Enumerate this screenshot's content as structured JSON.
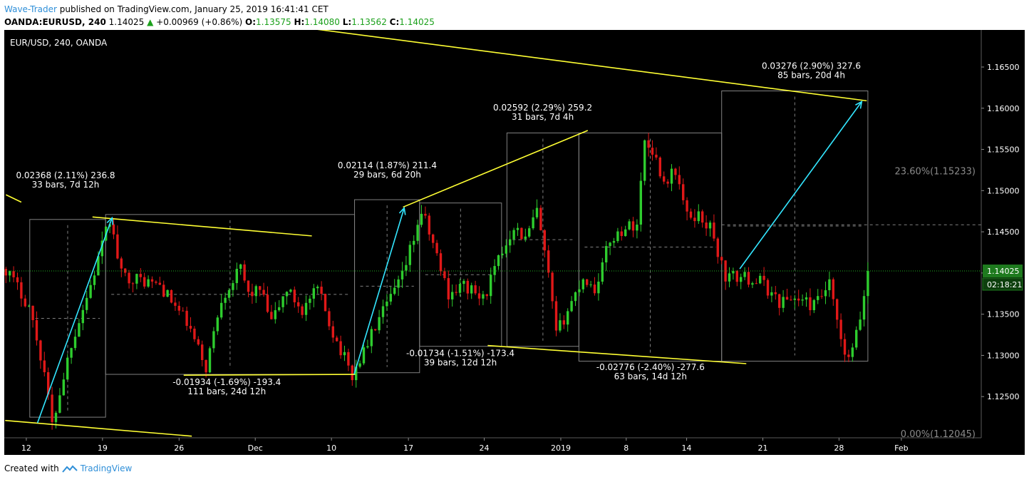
{
  "header": {
    "author": "Wave-Trader",
    "published": "published on TradingView.com, January 25, 2019 16:41:41 CET",
    "symbol": "OANDA:EURUSD, 240",
    "last": "1.14025",
    "change": "+0.00969 (+0.86%)",
    "o_label": "O:",
    "o_value": "1.13575",
    "h_label": "H:",
    "h_value": "1.14080",
    "l_label": "L:",
    "l_value": "1.13562",
    "c_label": "C:",
    "c_value": "1.14025"
  },
  "footer": {
    "created_with": "Created with",
    "brand": "TradingView"
  },
  "colors": {
    "background": "#000000",
    "up": "#2ecc2e",
    "down": "#e01818",
    "trendline": "#ffff33",
    "arrow": "#33e6ff",
    "box": "#808080",
    "price_tag": "#1e7a1e",
    "text": "#ffffff"
  },
  "chart_data": {
    "type": "candlestick",
    "title": "EUR/USD, 240, OANDA",
    "ylim": [
      1.12,
      1.1695
    ],
    "y_ticks": [
      "1.12500",
      "1.13000",
      "1.13500",
      "1.14000",
      "1.14500",
      "1.15000",
      "1.15500",
      "1.16000",
      "1.16500"
    ],
    "x_ticks": [
      "12",
      "19",
      "26",
      "Dec",
      "10",
      "17",
      "24",
      "2019",
      "8",
      "14",
      "21",
      "28",
      "Feb"
    ],
    "last_price": "1.14025",
    "countdown": "02:18:21",
    "fib_levels": [
      {
        "label": "23.60%(1.15233)",
        "value": 1.15233
      },
      {
        "label": "0.00%(1.12045)",
        "value": 1.12045
      }
    ],
    "price_path_anchors": [
      {
        "t": 0,
        "v": 1.1405
      },
      {
        "t": 6,
        "v": 1.136
      },
      {
        "t": 10,
        "v": 1.128
      },
      {
        "t": 12,
        "v": 1.1215
      },
      {
        "t": 17,
        "v": 1.1315
      },
      {
        "t": 22,
        "v": 1.1385
      },
      {
        "t": 27,
        "v": 1.1465
      },
      {
        "t": 30,
        "v": 1.1398
      },
      {
        "t": 40,
        "v": 1.1385
      },
      {
        "t": 47,
        "v": 1.134
      },
      {
        "t": 52,
        "v": 1.1285
      },
      {
        "t": 56,
        "v": 1.137
      },
      {
        "t": 61,
        "v": 1.1405
      },
      {
        "t": 63,
        "v": 1.1375
      },
      {
        "t": 66,
        "v": 1.138
      },
      {
        "t": 69,
        "v": 1.134
      },
      {
        "t": 73,
        "v": 1.138
      },
      {
        "t": 77,
        "v": 1.1355
      },
      {
        "t": 81,
        "v": 1.138
      },
      {
        "t": 85,
        "v": 1.1328
      },
      {
        "t": 90,
        "v": 1.1275
      },
      {
        "t": 96,
        "v": 1.1335
      },
      {
        "t": 103,
        "v": 1.1395
      },
      {
        "t": 108,
        "v": 1.1475
      },
      {
        "t": 111,
        "v": 1.1435
      },
      {
        "t": 115,
        "v": 1.1375
      },
      {
        "t": 119,
        "v": 1.1385
      },
      {
        "t": 124,
        "v": 1.1368
      },
      {
        "t": 128,
        "v": 1.1415
      },
      {
        "t": 132,
        "v": 1.1458
      },
      {
        "t": 135,
        "v": 1.144
      },
      {
        "t": 138,
        "v": 1.1475
      },
      {
        "t": 141,
        "v": 1.1395
      },
      {
        "t": 143,
        "v": 1.1325
      },
      {
        "t": 146,
        "v": 1.1355
      },
      {
        "t": 150,
        "v": 1.1395
      },
      {
        "t": 153,
        "v": 1.138
      },
      {
        "t": 157,
        "v": 1.144
      },
      {
        "t": 161,
        "v": 1.1455
      },
      {
        "t": 164,
        "v": 1.146
      },
      {
        "t": 166,
        "v": 1.156
      },
      {
        "t": 168,
        "v": 1.155
      },
      {
        "t": 171,
        "v": 1.151
      },
      {
        "t": 174,
        "v": 1.1525
      },
      {
        "t": 177,
        "v": 1.1468
      },
      {
        "t": 180,
        "v": 1.147
      },
      {
        "t": 183,
        "v": 1.1455
      },
      {
        "t": 187,
        "v": 1.1395
      },
      {
        "t": 191,
        "v": 1.1395
      },
      {
        "t": 196,
        "v": 1.139
      },
      {
        "t": 201,
        "v": 1.1365
      },
      {
        "t": 205,
        "v": 1.137
      },
      {
        "t": 210,
        "v": 1.136
      },
      {
        "t": 214,
        "v": 1.1385
      },
      {
        "t": 218,
        "v": 1.1295
      },
      {
        "t": 220,
        "v": 1.1305
      },
      {
        "t": 222,
        "v": 1.1345
      },
      {
        "t": 224,
        "v": 1.14025
      }
    ],
    "trendlines": [
      {
        "name": "upper-channel",
        "p1": {
          "t": 75.5,
          "v": 1.1699
        },
        "p2": {
          "t": 223.7,
          "v": 1.1609
        }
      },
      {
        "name": "lower-channel",
        "p1": {
          "t": -0.2,
          "v": 1.1221
        },
        "p2": {
          "t": 48.3,
          "v": 1.1202
        }
      },
      {
        "name": "left-stub",
        "p1": {
          "t": 0,
          "v": 1.1495
        },
        "p2": {
          "t": 4,
          "v": 1.1486
        }
      },
      {
        "name": "nov-top",
        "p1": {
          "t": 22.5,
          "v": 1.1468
        },
        "p2": {
          "t": 79.5,
          "v": 1.1445
        }
      },
      {
        "name": "nov-bottom",
        "p1": {
          "t": 46.2,
          "v": 1.1276
        },
        "p2": {
          "t": 90.8,
          "v": 1.1277
        }
      },
      {
        "name": "dec-rise",
        "p1": {
          "t": 103.2,
          "v": 1.148
        },
        "p2": {
          "t": 151.2,
          "v": 1.1573
        }
      },
      {
        "name": "jan-bottom",
        "p1": {
          "t": 125.2,
          "v": 1.1312
        },
        "p2": {
          "t": 192.4,
          "v": 1.129
        }
      }
    ],
    "arrows": [
      {
        "name": "arrow-nov",
        "from": {
          "t": 8.2,
          "v": 1.1218
        },
        "to": {
          "t": 27.6,
          "v": 1.1467
        }
      },
      {
        "name": "arrow-dec",
        "from": {
          "t": 90.5,
          "v": 1.1277
        },
        "to": {
          "t": 103.5,
          "v": 1.1479
        }
      },
      {
        "name": "arrow-proj",
        "from": {
          "t": 190.7,
          "v": 1.1405
        },
        "to": {
          "t": 222.4,
          "v": 1.1608
        }
      }
    ],
    "measurements": [
      {
        "line1": "0.02368 (2.11%) 236.8",
        "line2": "33 bars, 7d 12h",
        "t0": 6.2,
        "t1": 25.9,
        "v0": 1.1225,
        "v1": 1.1465,
        "anchor": {
          "t": 15.5,
          "v": 1.1515
        }
      },
      {
        "line1": "-0.01934 (-1.69%) -193.4",
        "line2": "111 bars, 24d 12h",
        "t0": 25.9,
        "t1": 90.6,
        "v0": 1.1277,
        "v1": 1.1471,
        "anchor": {
          "t": 57.4,
          "v": 1.1264
        }
      },
      {
        "line1": "0.02114 (1.87%) 211.4",
        "line2": "29 bars, 6d 20h",
        "t0": 90.6,
        "t1": 107.5,
        "v0": 1.1279,
        "v1": 1.1489,
        "anchor": {
          "t": 99.1,
          "v": 1.1527
        }
      },
      {
        "line1": "-0.01734 (-1.51%) -173.4",
        "line2": "39 bars, 12d 12h",
        "t0": 107.5,
        "t1": 128.8,
        "v0": 1.1311,
        "v1": 1.1485,
        "anchor": {
          "t": 118.1,
          "v": 1.1299
        }
      },
      {
        "line1": "0.02592 (2.29%) 259.2",
        "line2": "31 bars, 7d 4h",
        "t0": 130.2,
        "t1": 148.9,
        "v0": 1.1311,
        "v1": 1.157,
        "anchor": {
          "t": 139.5,
          "v": 1.1597
        }
      },
      {
        "line1": "-0.02776 (-2.40%) -277.6",
        "line2": "63 bars, 14d 12h",
        "t0": 148.9,
        "t1": 186.0,
        "v0": 1.1293,
        "v1": 1.157,
        "anchor": {
          "t": 167.5,
          "v": 1.1282
        }
      },
      {
        "line1": "0.03276 (2.90%) 327.6",
        "line2": "85 bars, 20d 4h",
        "t0": 186.0,
        "t1": 224.0,
        "v0": 1.1293,
        "v1": 1.1621,
        "anchor": {
          "t": 209.3,
          "v": 1.1648
        }
      }
    ]
  }
}
